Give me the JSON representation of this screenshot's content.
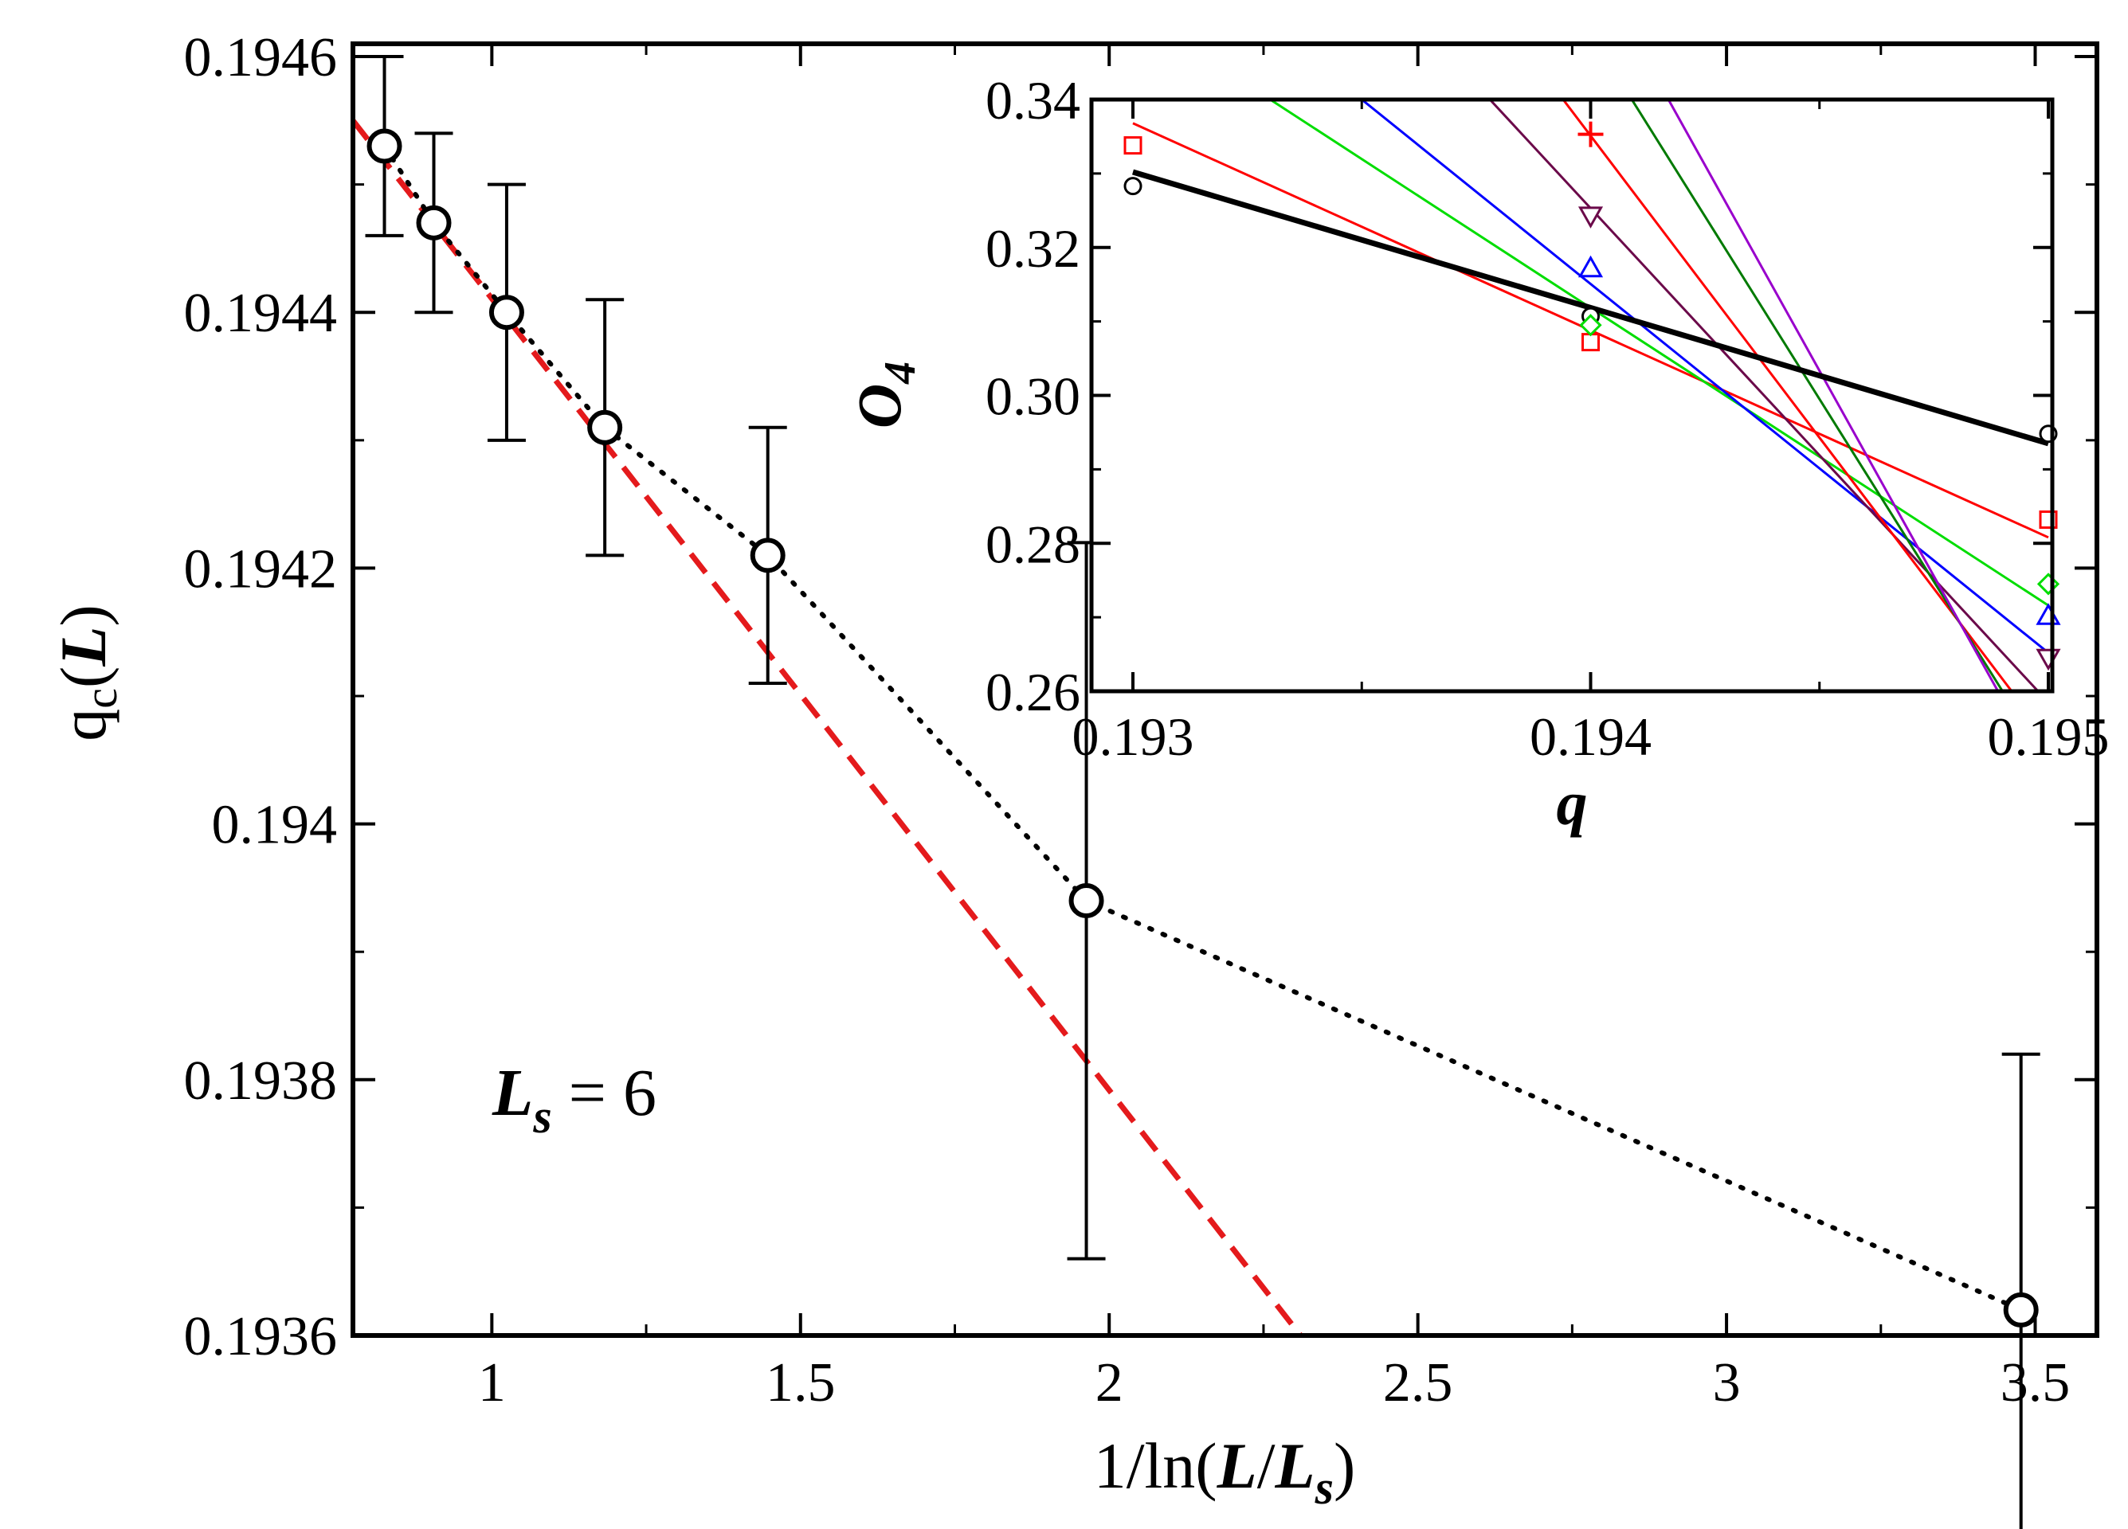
{
  "chart_data": [
    {
      "id": "main",
      "type": "scatter",
      "xlabel": {
        "prefix": "1/ln(",
        "L": "L",
        "slash": "/",
        "L2": "L",
        "sub": "s",
        "suffix": ")"
      },
      "ylabel": {
        "q": "q",
        "sub": "c",
        "open": "(",
        "L": "L",
        "close": ")"
      },
      "annotation": {
        "L": "L",
        "sub": "s",
        "eq": " = 6"
      },
      "xlim": [
        0.775,
        3.6
      ],
      "ylim": [
        0.1936,
        0.19461
      ],
      "xticks": [
        1,
        1.5,
        2,
        2.5,
        3,
        3.5
      ],
      "xtick_labels": [
        "1",
        "1.5",
        "2",
        "2.5",
        "3",
        "3.5"
      ],
      "xminor": [
        0.75,
        1.25,
        1.75,
        2.25,
        2.75,
        3.25
      ],
      "yticks": [
        0.1936,
        0.1938,
        0.194,
        0.1942,
        0.1944,
        0.1946
      ],
      "ytick_labels": [
        "0.1936",
        "0.1938",
        "0.194",
        "0.1942",
        "0.1944",
        "0.1946"
      ],
      "yminor": [
        0.1937,
        0.1939,
        0.1941,
        0.1943,
        0.1945
      ],
      "data": {
        "x": [
          0.826,
          0.906,
          1.024,
          1.183,
          1.447,
          1.963,
          3.477
        ],
        "y": [
          0.19453,
          0.19447,
          0.1944,
          0.19431,
          0.19421,
          0.19394,
          0.19362
        ],
        "err": [
          7e-05,
          7e-05,
          0.0001,
          0.0001,
          0.0001,
          0.00028,
          0.0002
        ]
      },
      "fit_line": {
        "color": "#e41a1c",
        "x": [
          0.775,
          2.31
        ],
        "y": [
          0.19455,
          0.1936
        ]
      }
    },
    {
      "id": "inset",
      "type": "line",
      "xlabel": "q",
      "ylabel": {
        "O": "O",
        "sub": "4"
      },
      "xlim": [
        0.193,
        0.195
      ],
      "ylim": [
        0.26,
        0.34
      ],
      "xticks": [
        0.193,
        0.194,
        0.195
      ],
      "xtick_labels": [
        "0.193",
        "0.194",
        "0.195"
      ],
      "xminor": [
        0.1935,
        0.1945
      ],
      "yticks": [
        0.26,
        0.28,
        0.3,
        0.32,
        0.34
      ],
      "ytick_labels": [
        "0.26",
        "0.28",
        "0.30",
        "0.32",
        "0.34"
      ],
      "yminor": [
        0.27,
        0.29,
        0.31,
        0.33
      ],
      "series": [
        {
          "name": "black circles",
          "color": "#000000",
          "marker": "circle",
          "width": 7,
          "line": [
            [
              0.193,
              0.3302
            ],
            [
              0.195,
              0.2935
            ]
          ],
          "points": [
            [
              0.193,
              0.3283
            ],
            [
              0.194,
              0.3107
            ],
            [
              0.195,
              0.2948
            ]
          ]
        },
        {
          "name": "red squares",
          "color": "#ff0000",
          "marker": "square",
          "width": 3,
          "line": [
            [
              0.193,
              0.3368
            ],
            [
              0.195,
              0.2808
            ]
          ],
          "points": [
            [
              0.193,
              0.3338
            ],
            [
              0.194,
              0.3072
            ],
            [
              0.195,
              0.2832
            ]
          ]
        },
        {
          "name": "green diamonds",
          "color": "#00dd00",
          "marker": "diamond",
          "width": 3,
          "line": [
            [
              0.1933,
              0.34
            ],
            [
              0.195,
              0.2716
            ]
          ],
          "points": [
            [
              0.194,
              0.3095
            ],
            [
              0.195,
              0.2745
            ]
          ]
        },
        {
          "name": "blue triangles up",
          "color": "#0000ff",
          "marker": "triangle-up",
          "width": 3,
          "line": [
            [
              0.1935,
              0.34
            ],
            [
              0.195,
              0.2652
            ]
          ],
          "points": [
            [
              0.194,
              0.3172
            ],
            [
              0.195,
              0.2702
            ]
          ]
        },
        {
          "name": "maroon triangles down",
          "color": "#6b0a4a",
          "marker": "triangle-down",
          "width": 3,
          "line": [
            [
              0.19378,
              0.34
            ],
            [
              0.195,
              0.2585
            ]
          ],
          "points": [
            [
              0.194,
              0.3243
            ],
            [
              0.195,
              0.2645
            ]
          ]
        },
        {
          "name": "red plus",
          "color": "#ff0000",
          "marker": "plus",
          "width": 3,
          "line": [
            [
              0.19394,
              0.34
            ],
            [
              0.19492,
              0.26
            ]
          ],
          "points": [
            [
              0.194,
              0.3353
            ]
          ]
        },
        {
          "name": "dark green",
          "color": "#007a00",
          "marker": "none",
          "width": 3,
          "line": [
            [
              0.19409,
              0.34
            ],
            [
              0.1949,
              0.26
            ]
          ],
          "points": []
        },
        {
          "name": "purple",
          "color": "#9900cc",
          "marker": "none",
          "width": 3,
          "line": [
            [
              0.19417,
              0.34
            ],
            [
              0.19489,
              0.26
            ]
          ],
          "points": []
        }
      ]
    }
  ]
}
